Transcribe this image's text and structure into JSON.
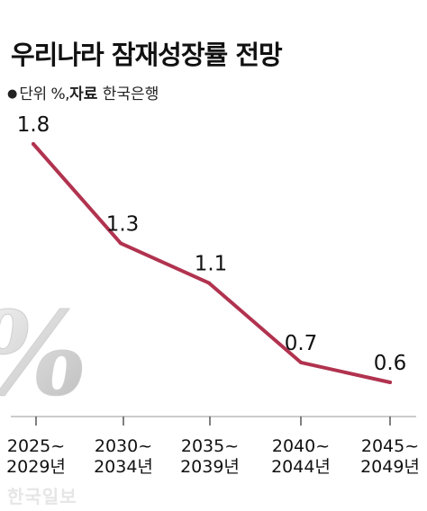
{
  "header": {
    "title": "우리나라 잠재성장률 전망",
    "unit_text": "단위 %,",
    "source_label": "자료",
    "source_value": " 한국은행"
  },
  "watermark": "한국일보",
  "decor": {
    "percent_symbol": "%"
  },
  "chart_data": {
    "type": "line",
    "categories": [
      [
        "2025~",
        "2029년"
      ],
      [
        "2030~",
        "2034년"
      ],
      [
        "2035~",
        "2039년"
      ],
      [
        "2040~",
        "2044년"
      ],
      [
        "2045~",
        "2049년"
      ]
    ],
    "series": [
      {
        "values": [
          1.8,
          1.3,
          1.1,
          0.7,
          0.6
        ]
      }
    ],
    "data_labels": [
      "1.8",
      "1.3",
      "1.1",
      "0.7",
      "0.6"
    ],
    "title": "우리나라 잠재성장률 전망",
    "line_color": "#b1334f",
    "ylim": [
      0.4,
      1.85
    ],
    "grid": false
  }
}
